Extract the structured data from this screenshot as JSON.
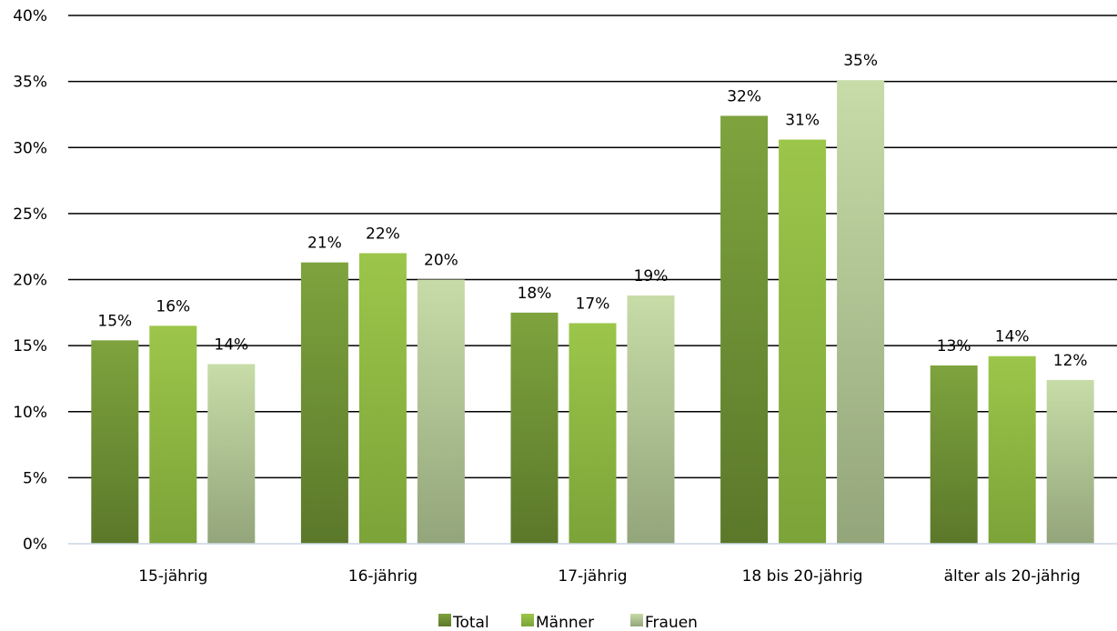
{
  "chart_data": {
    "type": "bar",
    "title": "",
    "xlabel": "",
    "ylabel": "",
    "categories": [
      "15-jährig",
      "16-jährig",
      "17-jährig",
      "18 bis 20-jährig",
      "älter als 20-jährig"
    ],
    "series": [
      {
        "name": "Total",
        "values": [
          15.4,
          21.3,
          17.5,
          32.4,
          13.5
        ],
        "labels": [
          "15%",
          "21%",
          "18%",
          "32%",
          "13%"
        ],
        "color_top": "#7ea33e",
        "color_bottom": "#5b782a"
      },
      {
        "name": "Männer",
        "values": [
          16.5,
          22.0,
          16.7,
          30.6,
          14.2
        ],
        "labels": [
          "16%",
          "22%",
          "17%",
          "31%",
          "14%"
        ],
        "color_top": "#9cc64a",
        "color_bottom": "#7ba338"
      },
      {
        "name": "Frauen",
        "values": [
          13.6,
          20.0,
          18.8,
          35.1,
          12.4
        ],
        "labels": [
          "14%",
          "20%",
          "19%",
          "35%",
          "12%"
        ],
        "color_top": "#c7dca8",
        "color_bottom": "#93a57a"
      }
    ],
    "ylim": [
      0,
      40
    ],
    "yticks": [
      0,
      5,
      10,
      15,
      20,
      25,
      30,
      35,
      40
    ],
    "ytick_labels": [
      "0%",
      "5%",
      "10%",
      "15%",
      "20%",
      "25%",
      "30%",
      "35%",
      "40%"
    ],
    "grid": true,
    "legend": "bottom"
  }
}
